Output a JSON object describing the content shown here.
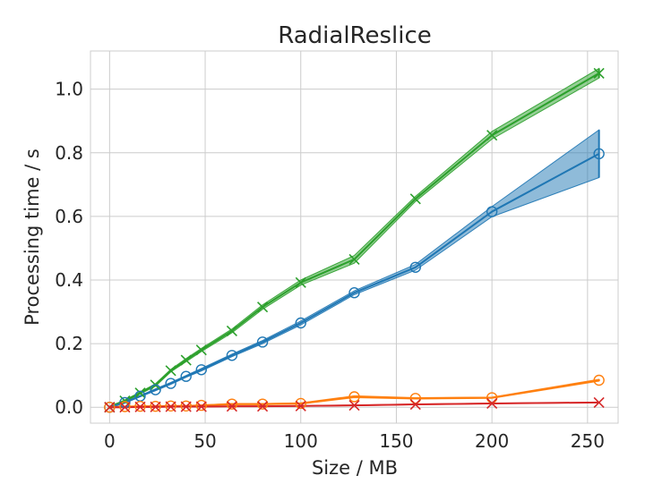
{
  "chart_data": {
    "type": "line",
    "title": "RadialReslice",
    "xlabel": "Size / MB",
    "ylabel": "Processing time / s",
    "xlim": [
      -10,
      266
    ],
    "ylim": [
      -0.05,
      1.12
    ],
    "xticks": [
      0,
      50,
      100,
      150,
      200,
      250
    ],
    "yticks": [
      0.0,
      0.2,
      0.4,
      0.6,
      0.8,
      1.0
    ],
    "xtick_labels": [
      "0",
      "50",
      "100",
      "150",
      "200",
      "250"
    ],
    "ytick_labels": [
      "0.0",
      "0.2",
      "0.4",
      "0.6",
      "0.8",
      "1.0"
    ],
    "grid": true,
    "series": [
      {
        "marker": "x",
        "color": "#2ca02c",
        "x": [
          0,
          8,
          16,
          24,
          32,
          40,
          48,
          64,
          80,
          100,
          128,
          160,
          200,
          256
        ],
        "y": [
          0.0,
          0.02,
          0.045,
          0.07,
          0.115,
          0.148,
          0.18,
          0.24,
          0.315,
          0.392,
          0.465,
          0.655,
          0.855,
          1.05
        ],
        "band": [
          0.003,
          0.003,
          0.003,
          0.004,
          0.004,
          0.005,
          0.005,
          0.006,
          0.007,
          0.008,
          0.012,
          0.008,
          0.012,
          0.015
        ]
      },
      {
        "marker": "o",
        "color": "#1f77b4",
        "x": [
          0,
          8,
          16,
          24,
          32,
          40,
          48,
          64,
          80,
          100,
          128,
          160,
          200,
          256
        ],
        "y": [
          0.0,
          0.015,
          0.035,
          0.055,
          0.075,
          0.097,
          0.118,
          0.163,
          0.205,
          0.265,
          0.36,
          0.44,
          0.615,
          0.797
        ],
        "band": [
          0.002,
          0.002,
          0.002,
          0.003,
          0.003,
          0.003,
          0.004,
          0.004,
          0.005,
          0.006,
          0.006,
          0.009,
          0.016,
          0.075
        ]
      },
      {
        "marker": "o",
        "color": "#ff7f0e",
        "x": [
          0,
          8,
          16,
          24,
          32,
          40,
          48,
          64,
          80,
          100,
          128,
          160,
          200,
          256
        ],
        "y": [
          0.0,
          0.002,
          0.003,
          0.003,
          0.004,
          0.004,
          0.006,
          0.01,
          0.01,
          0.012,
          0.033,
          0.028,
          0.03,
          0.085
        ],
        "band": [
          0.001,
          0.001,
          0.001,
          0.001,
          0.001,
          0.001,
          0.001,
          0.002,
          0.002,
          0.002,
          0.003,
          0.002,
          0.002,
          0.003
        ]
      },
      {
        "marker": "x",
        "color": "#d62728",
        "x": [
          0,
          8,
          16,
          24,
          32,
          40,
          48,
          64,
          80,
          100,
          128,
          160,
          200,
          256
        ],
        "y": [
          0.0,
          0.0,
          0.001,
          0.001,
          0.002,
          0.002,
          0.002,
          0.003,
          0.003,
          0.004,
          0.006,
          0.009,
          0.012,
          0.015
        ],
        "band": [
          0.001,
          0.001,
          0.001,
          0.001,
          0.001,
          0.001,
          0.001,
          0.001,
          0.001,
          0.001,
          0.001,
          0.001,
          0.001,
          0.001
        ]
      }
    ]
  }
}
